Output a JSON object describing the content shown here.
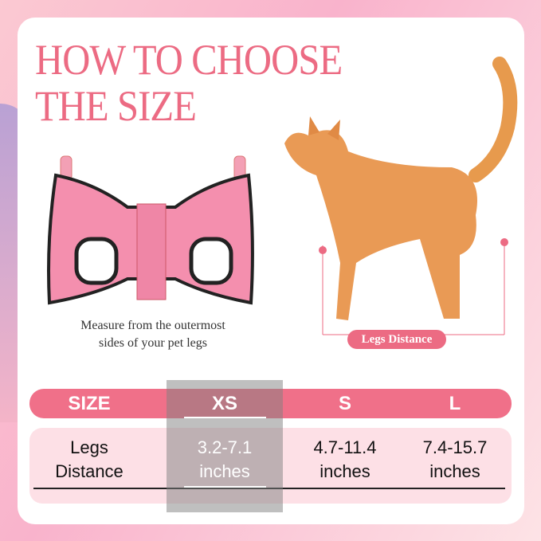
{
  "title_lines": [
    "HOW TO CHOOSE",
    "THE SIZE"
  ],
  "caption_lines": [
    "Measure from the outermost",
    "sides of your pet legs"
  ],
  "legs_label": "Legs Distance",
  "table": {
    "headers": [
      "SIZE",
      "XS",
      "S",
      "L"
    ],
    "row_label_lines": [
      "Legs",
      "Distance"
    ],
    "values": [
      {
        "range": "3.2-7.1",
        "unit": "inches"
      },
      {
        "range": "4.7-11.4",
        "unit": "inches"
      },
      {
        "range": "7.4-15.7",
        "unit": "inches"
      }
    ],
    "highlighted": "XS"
  },
  "colors": {
    "accent": "#ec6b83",
    "header": "#f07089",
    "row_bg": "#fde0e6",
    "highlight_overlay": "#808080"
  }
}
